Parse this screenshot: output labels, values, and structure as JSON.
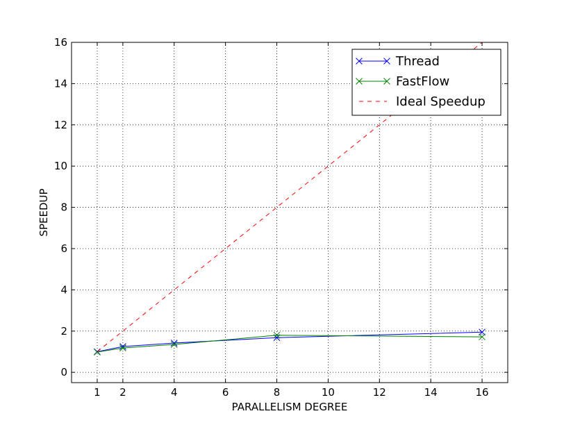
{
  "chart_data": {
    "type": "line",
    "title": "",
    "xlabel": "PARALLELISM DEGREE",
    "ylabel": "SPEEDUP",
    "xlim": [
      0,
      17
    ],
    "ylim": [
      -0.5,
      16
    ],
    "xticks": [
      1,
      2,
      4,
      6,
      8,
      10,
      12,
      14,
      16
    ],
    "yticks": [
      0,
      2,
      4,
      6,
      8,
      10,
      12,
      14,
      16
    ],
    "grid": true,
    "legend_position": "top-right",
    "series": [
      {
        "name": "Thread",
        "color": "#0000ff",
        "style": "solid",
        "marker": "x",
        "x": [
          1,
          2,
          4,
          8,
          16
        ],
        "y": [
          1.0,
          1.25,
          1.42,
          1.68,
          1.95
        ]
      },
      {
        "name": "FastFlow",
        "color": "#008000",
        "style": "solid",
        "marker": "x",
        "x": [
          1,
          2,
          4,
          8,
          16
        ],
        "y": [
          0.98,
          1.18,
          1.35,
          1.8,
          1.72
        ]
      },
      {
        "name": "Ideal Speedup",
        "color": "#ff0000",
        "style": "dashed",
        "marker": "none",
        "x": [
          1,
          16
        ],
        "y": [
          1,
          16
        ]
      }
    ]
  }
}
